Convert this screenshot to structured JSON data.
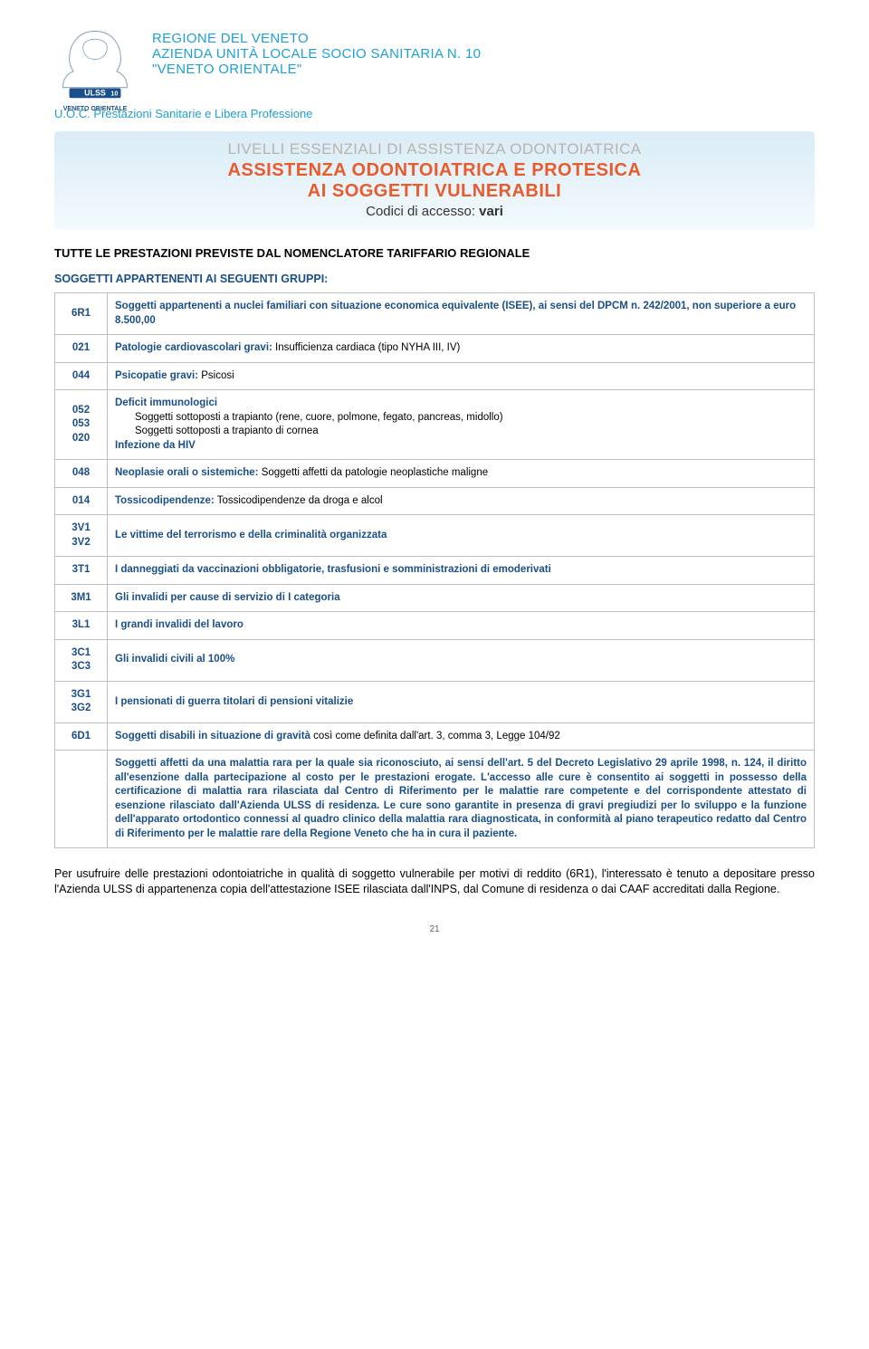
{
  "org": {
    "line1": "REGIONE DEL VENETO",
    "line2": "AZIENDA UNITÀ LOCALE SOCIO SANITARIA N. 10",
    "line3": "\"VENETO ORIENTALE\"",
    "logo_label": "VENETO ORIENTALE",
    "uoc": "U.O.C. Prestazioni Sanitarie e Libera Professione"
  },
  "title": {
    "t1": "LIVELLI ESSENZIALI DI ASSISTENZA ODONTOIATRICA",
    "t2": "ASSISTENZA ODONTOIATRICA E PROTESICA",
    "t3": "AI SOGGETTI VULNERABILI",
    "t4_prefix": "Codici di accesso: ",
    "t4_val": "vari"
  },
  "headings": {
    "section": "TUTTE LE PRESTAZIONI PREVISTE DAL NOMENCLATORE TARIFFARIO REGIONALE",
    "sub": "SOGGETTI APPARTENENTI AI SEGUENTI GRUPPI:"
  },
  "rows": [
    {
      "code": "6R1",
      "html": "Soggetti appartenenti a nuclei familiari con situazione economica equivalente (ISEE), ai sensi del DPCM n. 242/2001, non superiore a euro 8.500,00"
    },
    {
      "code": "021",
      "label": "Patologie cardiovascolari gravi:",
      "text": " Insufficienza cardiaca (tipo NYHA III, IV)"
    },
    {
      "code": "044",
      "label": "Psicopatie gravi:",
      "text": " Psicosi"
    },
    {
      "code": "052\n053\n020",
      "complex": {
        "head": "Deficit immunologici",
        "sub1": "Soggetti sottoposti a trapianto (rene, cuore, polmone, fegato, pancreas, midollo)",
        "sub2": "Soggetti sottoposti a trapianto di cornea",
        "tail": "Infezione da HIV"
      }
    },
    {
      "code": "048",
      "label": "Neoplasie orali o sistemiche:",
      "text": " Soggetti affetti da patologie neoplastiche maligne"
    },
    {
      "code": "014",
      "label": "Tossicodipendenze:",
      "text": " Tossicodipendenze da droga e alcol"
    },
    {
      "code": "3V1\n3V2",
      "label": "Le vittime del terrorismo e della criminalità organizzata",
      "text": ""
    },
    {
      "code": "3T1",
      "label": "I danneggiati da vaccinazioni obbligatorie, trasfusioni e somministrazioni di emoderivati",
      "text": ""
    },
    {
      "code": "3M1",
      "label": "Gli invalidi per cause di servizio di I categoria",
      "text": ""
    },
    {
      "code": "3L1",
      "label": "I grandi invalidi del lavoro",
      "text": ""
    },
    {
      "code": "3C1\n3C3",
      "label": "Gli invalidi civili al 100%",
      "text": ""
    },
    {
      "code": "3G1\n3G2",
      "label": "I pensionati di guerra titolari di pensioni vitalizie",
      "text": ""
    },
    {
      "code": "6D1",
      "label": "Soggetti disabili in situazione di gravità",
      "text": " così come definita dall'art. 3, comma 3, Legge 104/92"
    },
    {
      "code": "",
      "html": "Soggetti affetti da una malattia rara per la quale sia riconosciuto, ai sensi dell'art. 5 del Decreto Legislativo 29 aprile 1998, n. 124, il diritto all'esenzione dalla partecipazione al costo per le prestazioni erogate. L'accesso alle cure è consentito ai soggetti in possesso della certificazione di malattia rara rilasciata dal Centro di Riferimento per le malattie rare competente e del corrispondente attestato di esenzione rilasciato dall'Azienda ULSS di residenza. Le cure sono garantite in presenza di gravi pregiudizi per lo sviluppo e la funzione dell'apparato ortodontico connessi al quadro clinico della malattia rara diagnosticata, in conformità al piano terapeutico redatto dal Centro di Riferimento per le malattie rare della Regione Veneto che ha in cura il paziente.",
      "bold": true,
      "justify": true
    }
  ],
  "footer": "Per usufruire delle prestazioni odontoiatriche in qualità di soggetto vulnerabile per motivi di reddito (6R1), l'interessato è tenuto a depositare presso l'Azienda ULSS di appartenenza copia dell'attestazione ISEE rilasciata dall'INPS, dal Comune di residenza o dai CAAF accreditati dalla Regione.",
  "page_number": "21",
  "colors": {
    "brand_blue": "#1ea0d6",
    "dark_blue": "#1a4f8a",
    "orange": "#e95b2b",
    "grey": "#b7b4af",
    "border": "#bfbfbf",
    "grad_top": "#d9ecf7",
    "grad_bot": "#f4fafd"
  }
}
